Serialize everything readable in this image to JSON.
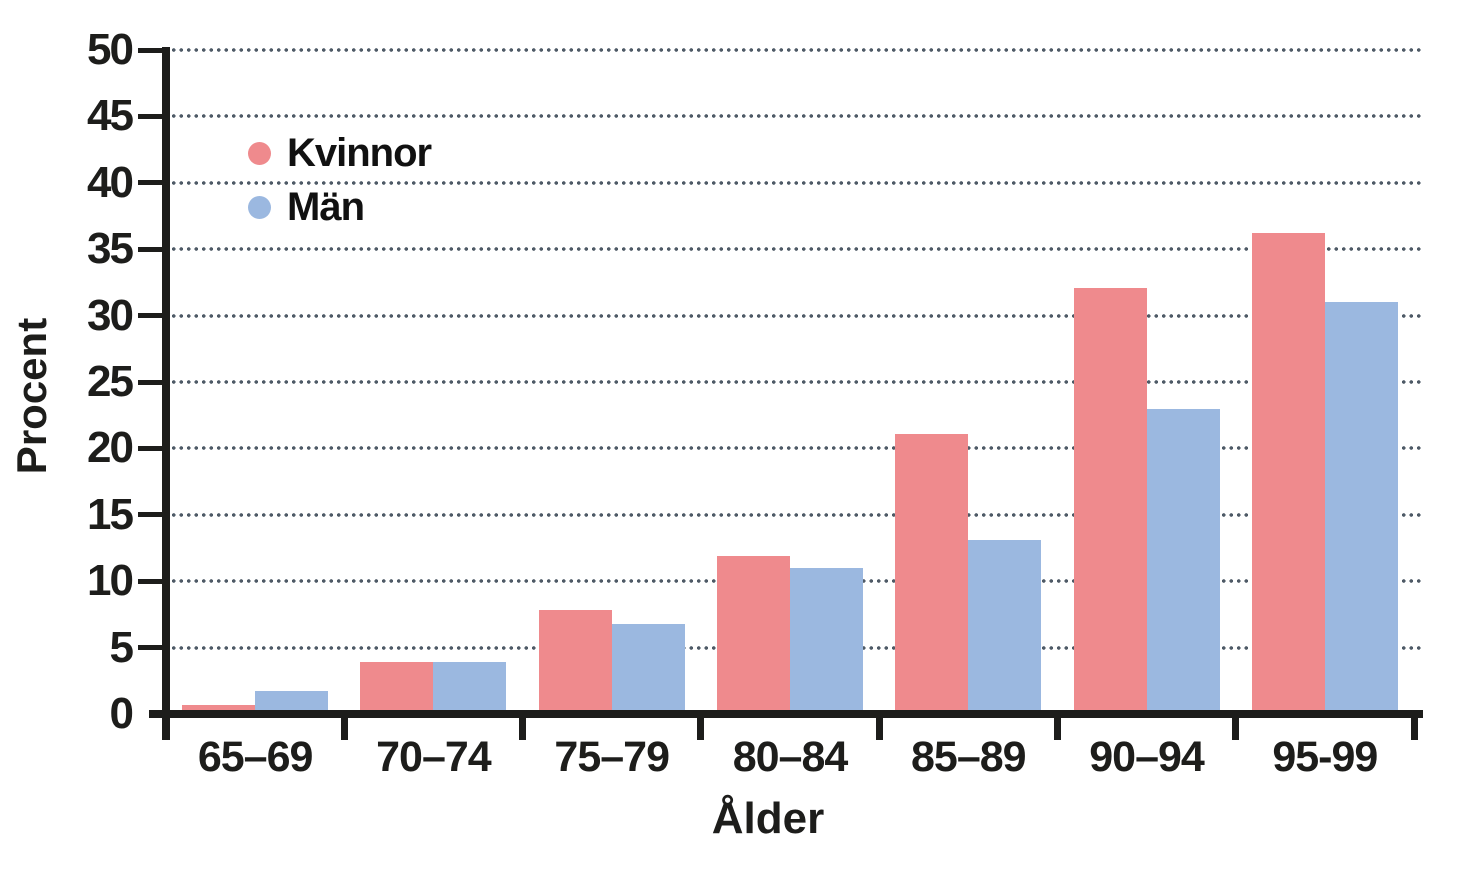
{
  "chart_data": {
    "type": "bar",
    "title": "",
    "categories": [
      "65–69",
      "70–74",
      "75–79",
      "80–84",
      "85–89",
      "90–94",
      "95-99"
    ],
    "series": [
      {
        "name": "Kvinnor",
        "color": "#EF8A8D",
        "values": [
          0.7,
          3.9,
          7.8,
          11.9,
          21.1,
          32.1,
          36.2
        ]
      },
      {
        "name": "Män",
        "color": "#9BB8E0",
        "values": [
          1.7,
          3.9,
          6.8,
          11.0,
          13.1,
          23.0,
          31.0
        ]
      }
    ],
    "xlabel": "Ålder",
    "ylabel": "Procent",
    "ylim": [
      0,
      50
    ],
    "ytick_step": 5,
    "y_tick_labels": [
      "0",
      "5",
      "10",
      "15",
      "20",
      "25",
      "30",
      "35",
      "40",
      "45",
      "50"
    ],
    "grid": "dotted horizontal lines at every 5 units from 5 to 50",
    "grid_color": "#4E5A66",
    "axis_color": "#1D1D1B",
    "legend_position": "top-left inside plot"
  }
}
